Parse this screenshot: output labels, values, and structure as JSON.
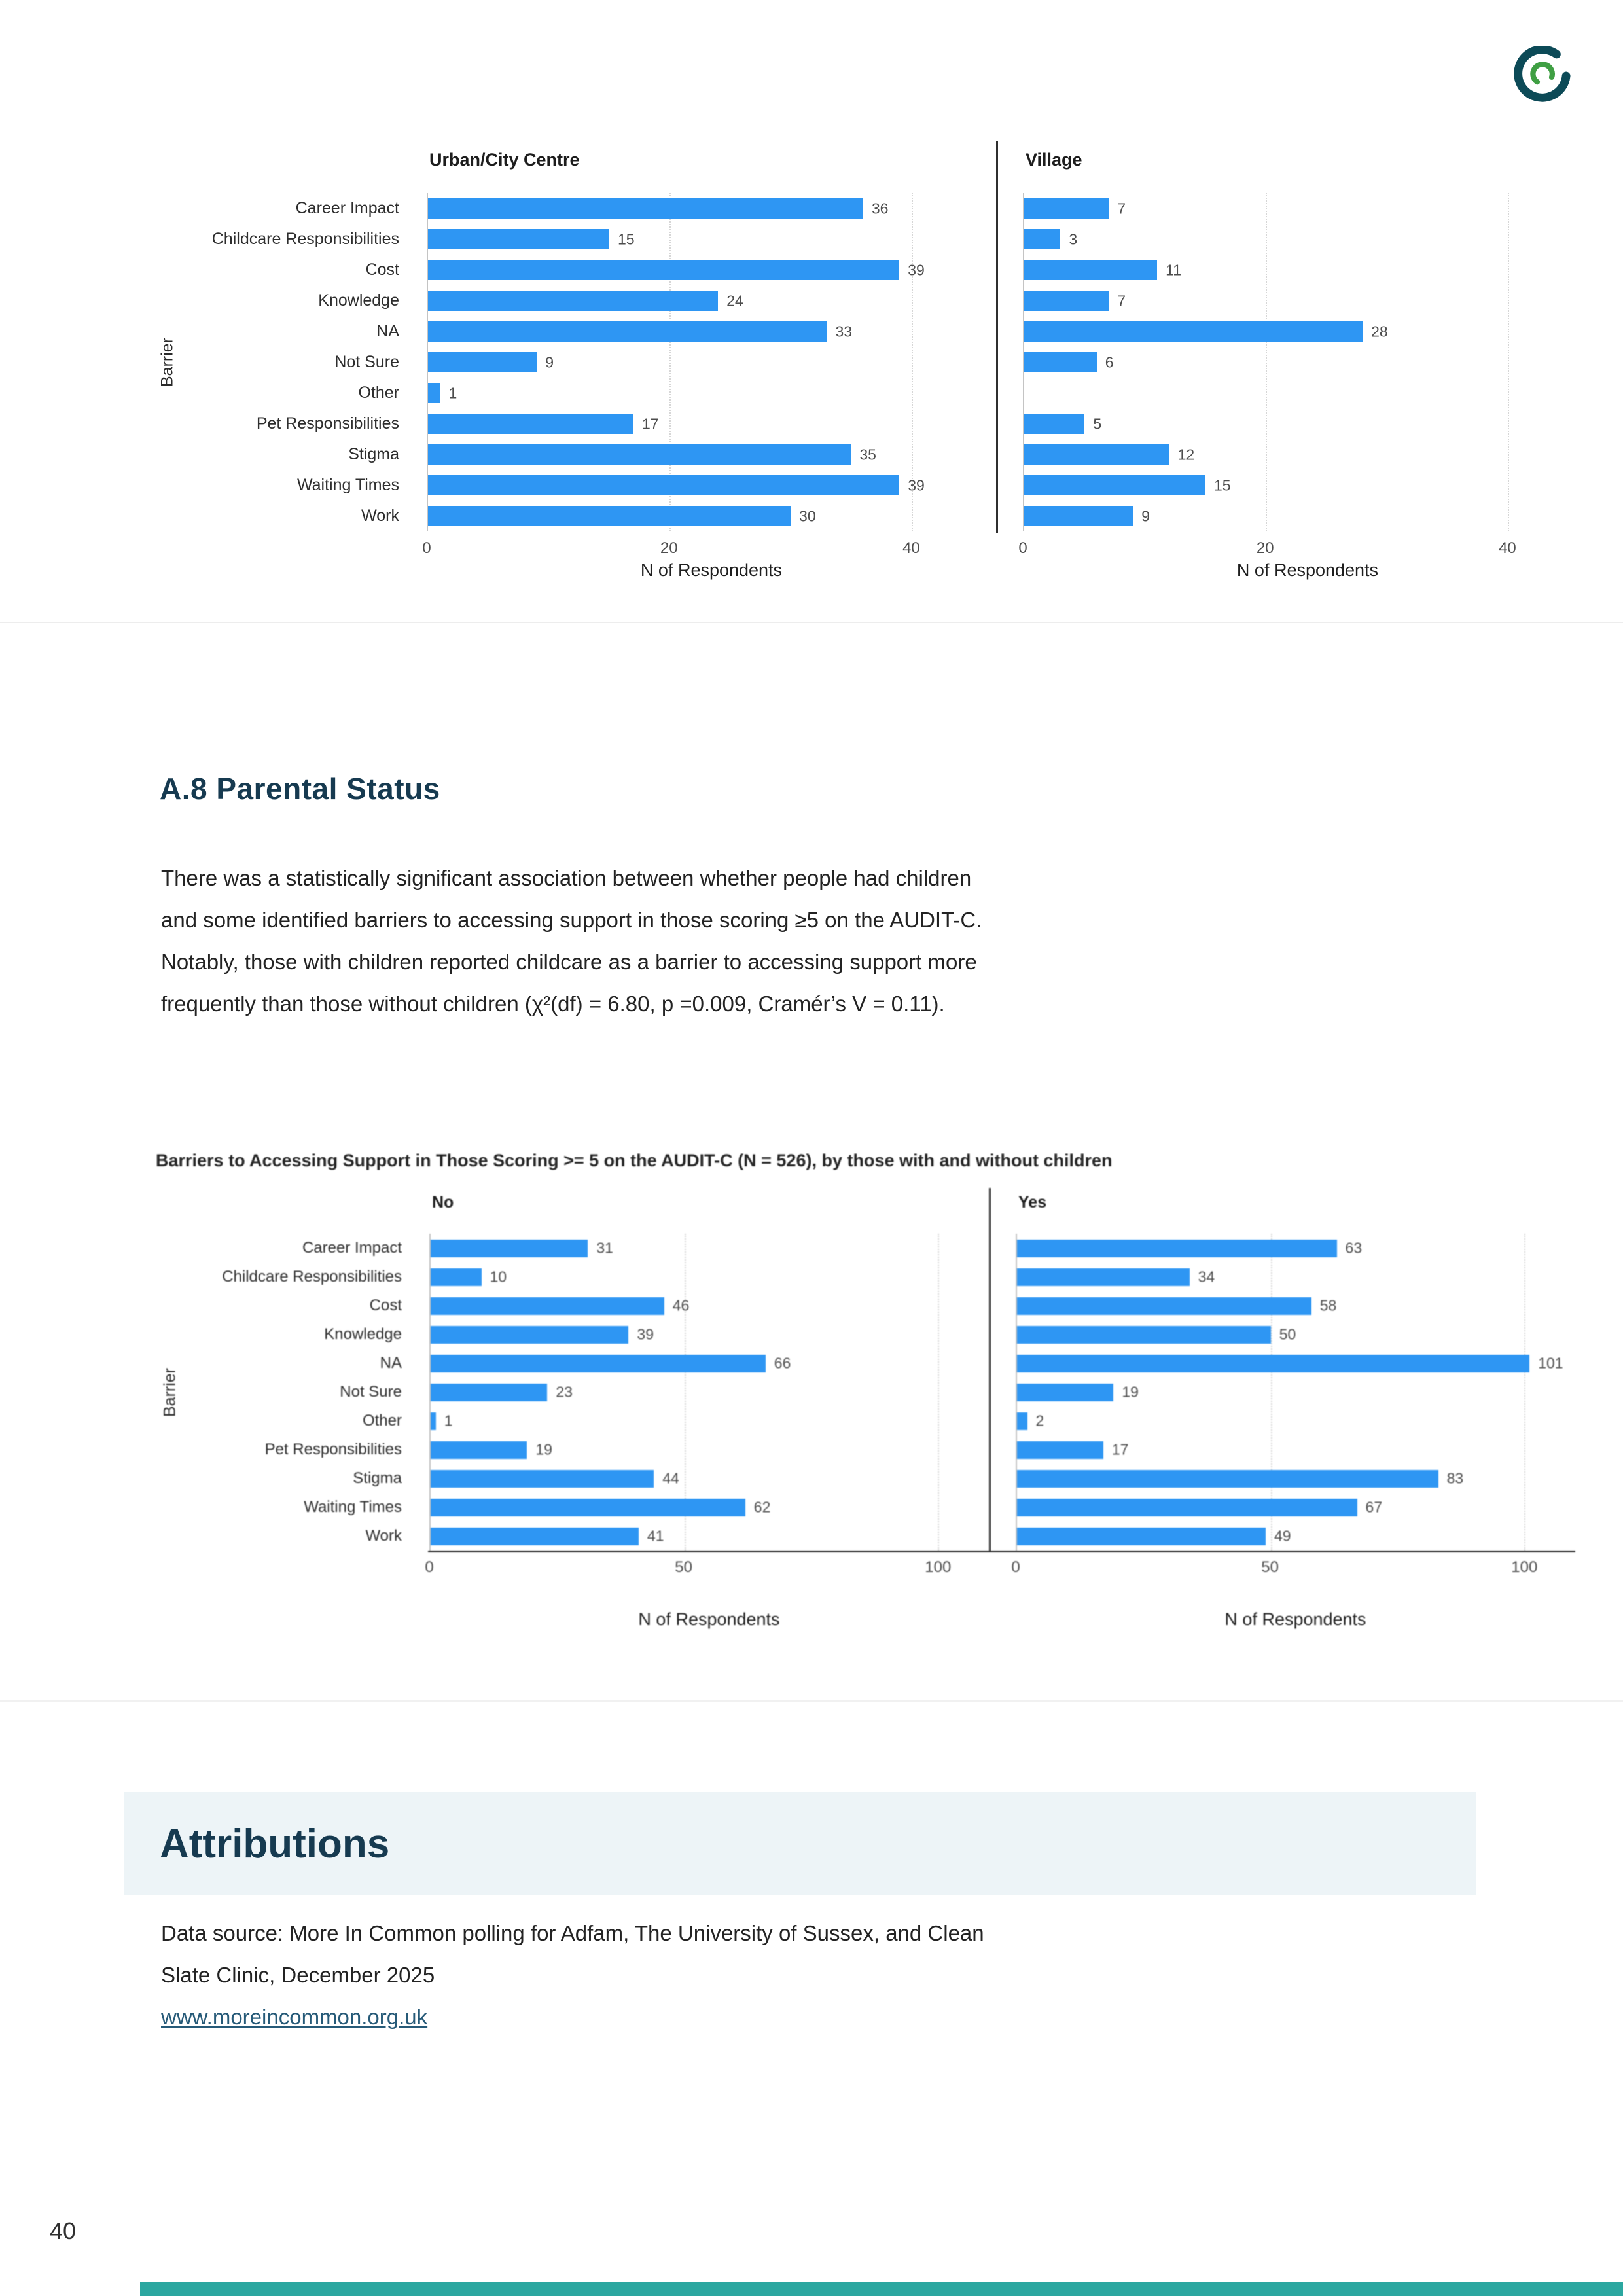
{
  "colors": {
    "bar": "#2e96f3",
    "heading": "#163a50",
    "band_bg": "#edf4f7",
    "footer_bar": "#2ba7a0",
    "link": "#265a78"
  },
  "section": {
    "heading": "A.8 Parental Status",
    "lines": [
      "There was a statistically significant association between whether people had children",
      "and some identified barriers  to accessing support in those scoring ≥5 on the AUDIT-C.",
      "Notably, those with children reported childcare as a barrier to accessing support more",
      "frequently than those without children (χ²(df) = 6.80, p =0.009, Cramér’s V = 0.11)."
    ]
  },
  "attributions": {
    "heading": "Attributions",
    "lines": [
      "Data source: More In Common polling for Adfam, The University of Sussex, and Clean",
      "Slate Clinic, December 2025"
    ],
    "link_text": "www.moreincommon.org.uk"
  },
  "footer": {
    "page_number": "40"
  },
  "chart_data": [
    {
      "type": "bar",
      "orientation": "horizontal",
      "title": "",
      "categories": [
        "Career Impact",
        "Childcare Responsibilities",
        "Cost",
        "Knowledge",
        "NA",
        "Not Sure",
        "Other",
        "Pet Responsibilities",
        "Stigma",
        "Waiting Times",
        "Work"
      ],
      "series": [
        {
          "name": "Urban/City Centre",
          "values": [
            36,
            15,
            39,
            24,
            33,
            9,
            1,
            17,
            35,
            39,
            30
          ]
        },
        {
          "name": "Village",
          "values": [
            7,
            3,
            11,
            7,
            28,
            6,
            null,
            5,
            12,
            15,
            9
          ]
        }
      ],
      "xlabel": "N of Respondents",
      "ylabel": "Barrier",
      "xlim": [
        0,
        47
      ],
      "xticks": [
        0,
        20,
        40
      ],
      "grid": "dotted-vertical",
      "legend": "none",
      "bar_color": "#2e96f3"
    },
    {
      "type": "bar",
      "orientation": "horizontal",
      "title": "Barriers to Accessing Support in Those Scoring >= 5 on the AUDIT-C (N = 526), by those with and without children",
      "categories": [
        "Career Impact",
        "Childcare Responsibilities",
        "Cost",
        "Knowledge",
        "NA",
        "Not Sure",
        "Other",
        "Pet Responsibilities",
        "Stigma",
        "Waiting Times",
        "Work"
      ],
      "series": [
        {
          "name": "No",
          "values": [
            31,
            10,
            46,
            39,
            66,
            23,
            1,
            19,
            44,
            62,
            41
          ]
        },
        {
          "name": "Yes",
          "values": [
            63,
            34,
            58,
            50,
            101,
            19,
            2,
            17,
            83,
            67,
            49
          ]
        }
      ],
      "xlabel": "N of Respondents",
      "ylabel": "Barrier",
      "xlim": [
        0,
        110
      ],
      "xticks": [
        0,
        50,
        100
      ],
      "grid": "dotted-vertical",
      "legend": "none",
      "bar_color": "#2e96f3"
    }
  ]
}
